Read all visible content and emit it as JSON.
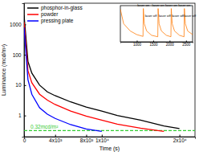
{
  "chart_data": [
    {
      "type": "line",
      "x_label": "Time (s)",
      "y_label": "Luminance (mcd/m²)",
      "log": "y",
      "legend": "top-left",
      "x": [
        0,
        500,
        1000,
        2000,
        3000,
        4000,
        6000,
        8000,
        10000,
        12000,
        15000,
        18000,
        20000
      ],
      "series": [
        {
          "name": "phosphor-in-glass",
          "color": "#000000",
          "values": [
            2000,
            60,
            25,
            10,
            6,
            4.5,
            2.8,
            1.9,
            1.4,
            1.0,
            0.7,
            0.45,
            0.37
          ]
        },
        {
          "name": "powder",
          "color": "#ff0000",
          "values": [
            1200,
            30,
            12,
            5,
            3.2,
            2.3,
            1.4,
            0.95,
            0.7,
            0.52,
            0.38,
            0.3,
            null
          ]
        },
        {
          "name": "pressing plate",
          "color": "#0000ff",
          "values": [
            800,
            15,
            5,
            1.8,
            1.1,
            0.8,
            0.5,
            0.36,
            0.3,
            null,
            null,
            null,
            null
          ]
        }
      ],
      "xlim": [
        0,
        22000
      ],
      "xticks": [
        0,
        {
          "value": 4000,
          "label": "4x10³"
        },
        {
          "value": 8000,
          "label": "8x10³"
        },
        {
          "value": 10000,
          "label": "1x10⁴"
        },
        {
          "value": 20000,
          "label": "2x10⁴"
        }
      ],
      "ylim": [
        0.2,
        5000
      ],
      "yticks": [
        1,
        10,
        100,
        1000
      ],
      "annotations": [
        {
          "text": "0.32mcd/m²",
          "y": 0.32,
          "color": "#33cc33",
          "line_style": "dashed"
        }
      ]
    },
    {
      "type": "line",
      "tick_labels": "x",
      "x": [
        500,
        600,
        800,
        1000,
        1190,
        1200,
        1230,
        1300,
        1450,
        1640,
        1650,
        1680,
        1750,
        1900,
        2040,
        2050,
        2080,
        2150,
        2300,
        2440,
        2450,
        2480,
        2550,
        2700
      ],
      "series": [
        {
          "color": "#ff7f0e",
          "values": [
            90,
            50,
            30,
            20,
            15,
            92,
            50,
            30,
            18,
            14,
            92,
            50,
            30,
            18,
            14,
            92,
            50,
            30,
            18,
            14,
            92,
            50,
            30,
            20
          ]
        }
      ],
      "xlim": [
        500,
        2700
      ],
      "xticks": [
        1000,
        1500,
        2000,
        2500
      ],
      "ylim": [
        0,
        100
      ],
      "annotations": [
        {
          "text": "laser on",
          "x": 1200,
          "y": 97
        },
        {
          "text": "laser on",
          "x": 1650,
          "y": 97
        },
        {
          "text": "laser on",
          "x": 2050,
          "y": 97
        },
        {
          "text": "laser on",
          "x": 2450,
          "y": 97
        },
        {
          "text": "laser off",
          "x": 1430,
          "y": 70
        },
        {
          "text": "laser off",
          "x": 1850,
          "y": 70
        },
        {
          "text": "laser off",
          "x": 2250,
          "y": 70
        },
        {
          "text": "laser off",
          "x": 2620,
          "y": 70
        }
      ]
    }
  ]
}
